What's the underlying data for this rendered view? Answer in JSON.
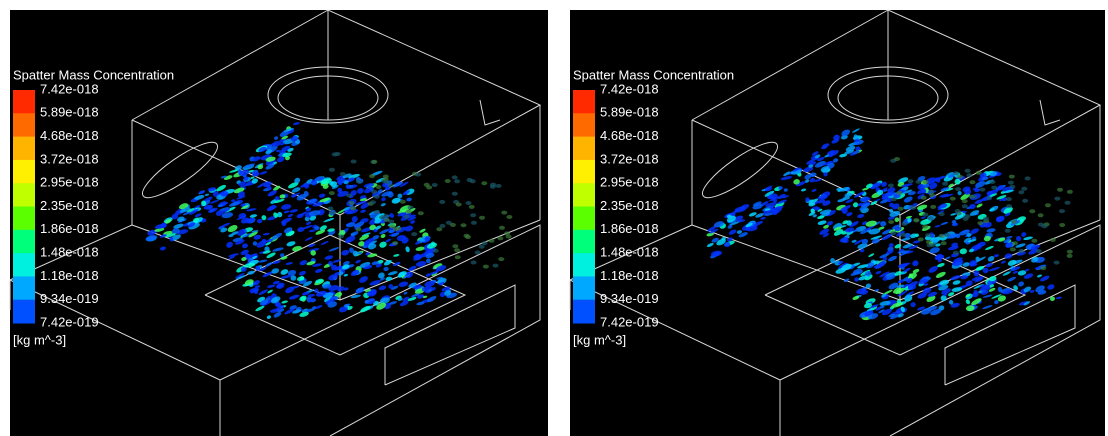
{
  "colorbar_colors": [
    "#ff2a00",
    "#ff6a00",
    "#ffb400",
    "#ffef00",
    "#bfff00",
    "#5cff00",
    "#00ff7a",
    "#00f0e0",
    "#00a8ff",
    "#0050ff"
  ],
  "panels": [
    {
      "legend_title": "Spatter Mass Concentration",
      "labels": [
        "7.42e-018",
        "5.89e-018",
        "4.68e-018",
        "3.72e-018",
        "2.95e-018",
        "2.35e-018",
        "1.86e-018",
        "1.48e-018",
        "1.18e-018",
        "9.34e-019",
        "7.42e-019"
      ],
      "units": "[kg m^-3]"
    },
    {
      "legend_title": "Spatter Mass Concentration",
      "labels": [
        "7.42e-018",
        "5.89e-018",
        "4.68e-018",
        "3.72e-018",
        "2.95e-018",
        "2.35e-018",
        "1.86e-018",
        "1.48e-018",
        "1.18e-018",
        "9.34e-019",
        "7.42e-019"
      ],
      "units": "[kg m^-3]"
    }
  ]
}
